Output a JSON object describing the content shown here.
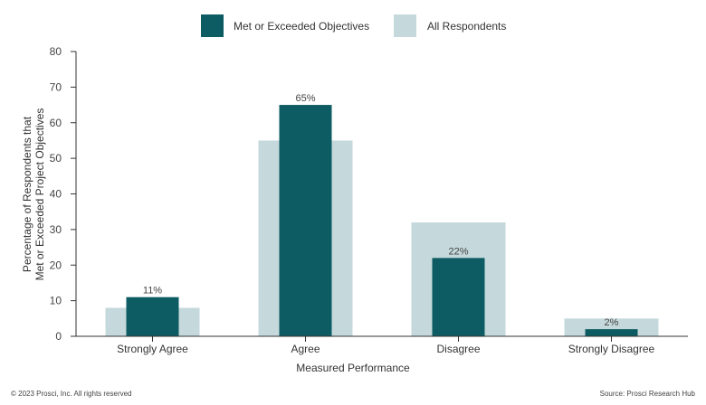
{
  "chart_data": {
    "type": "bar",
    "categories": [
      "Strongly Agree",
      "Agree",
      "Disagree",
      "Strongly Disagree"
    ],
    "series": [
      {
        "name": "All Respondents",
        "values": [
          8,
          55,
          32,
          5
        ]
      },
      {
        "name": "Met or Exceeded Objectives",
        "values": [
          11,
          65,
          22,
          2
        ],
        "labels": [
          "11%",
          "65%",
          "22%",
          "2%"
        ]
      }
    ],
    "xlabel": "Measured Performance",
    "ylabel_lines": [
      "Percentage of Respondents that",
      "Met or Exceeded Project Objectives"
    ],
    "ylim": [
      0,
      80
    ],
    "yticks": [
      0,
      10,
      20,
      30,
      40,
      50,
      60,
      70,
      80
    ],
    "legend_position": "top-center",
    "grid": false
  },
  "colors": {
    "met": "#0d5c63",
    "all": "#c5d9dc",
    "axis": "#333333"
  },
  "footer": {
    "copyright": "© 2023 Prosci, Inc. All rights reserved",
    "source": "Source: Prosci Research Hub"
  }
}
